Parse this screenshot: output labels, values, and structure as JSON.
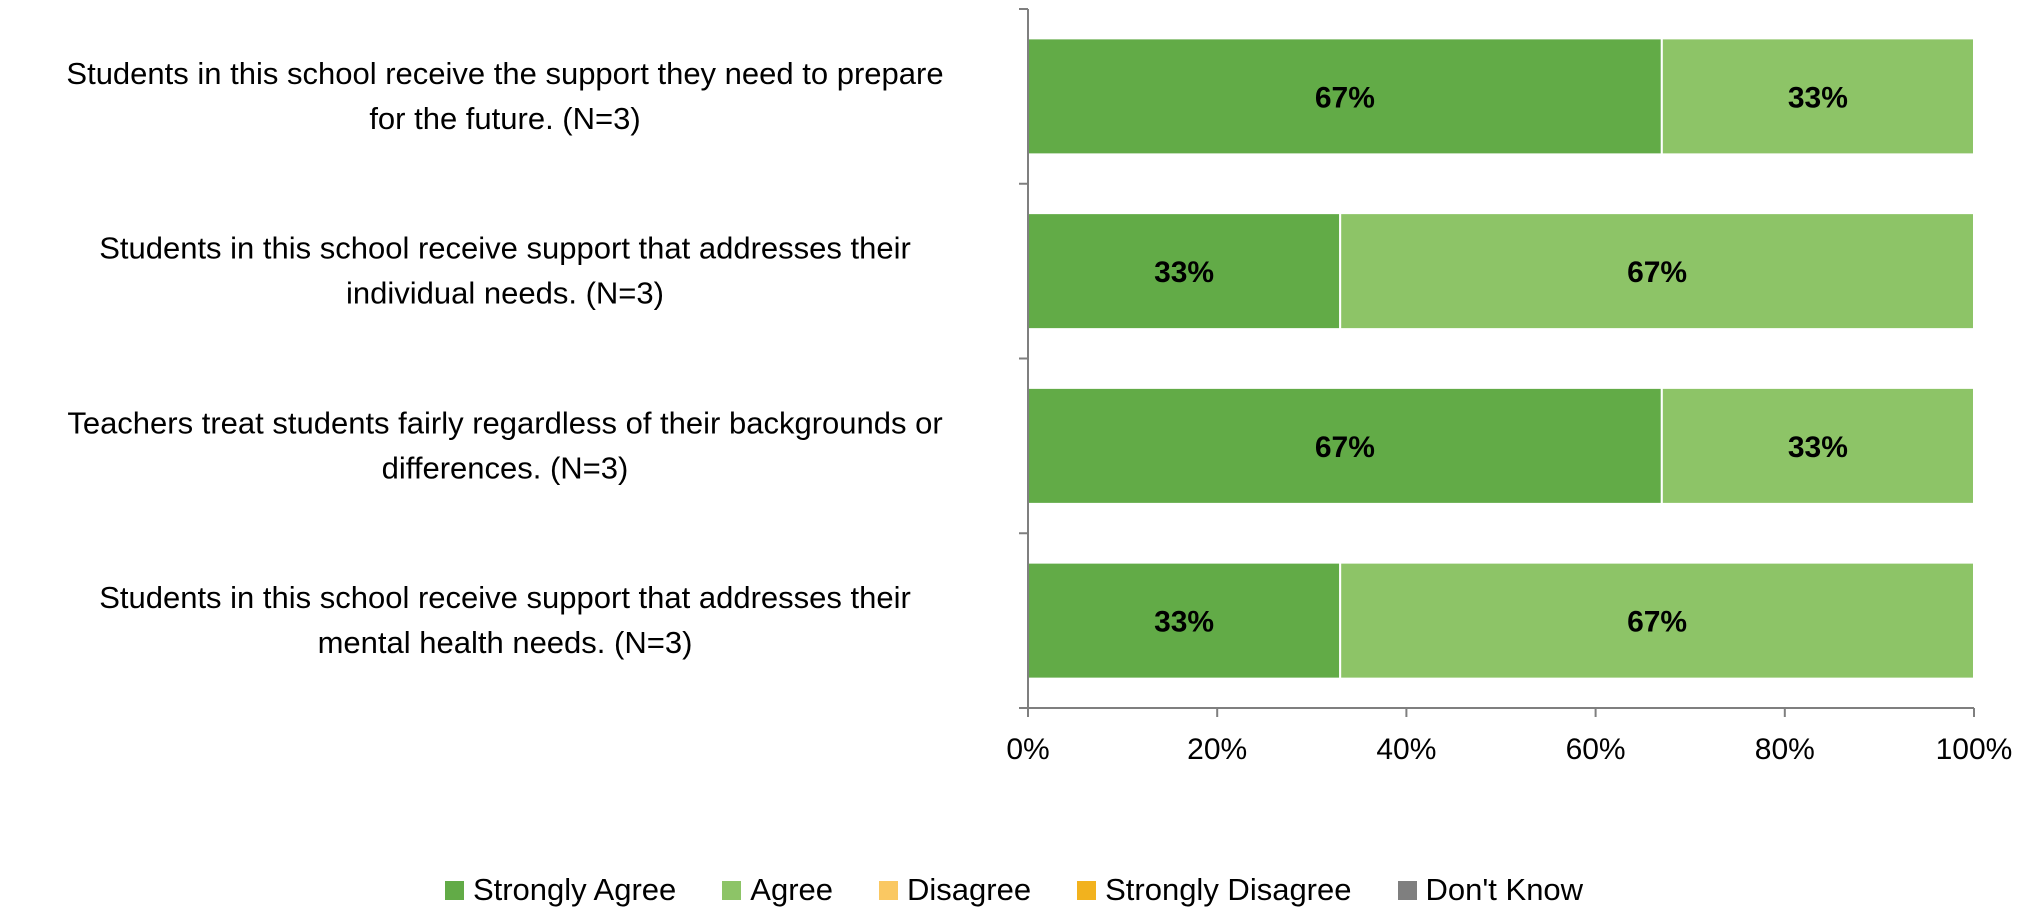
{
  "chart_data": {
    "type": "bar",
    "orientation": "horizontal",
    "stacked": true,
    "categories": [
      "Students in this school receive the support they need to prepare for the future. (N=3)",
      "Students in this school receive support that addresses their individual needs. (N=3)",
      "Teachers treat students fairly regardless of their backgrounds or differences. (N=3)",
      "Students in this school receive support that addresses their mental health needs. (N=3)"
    ],
    "category_lines": [
      [
        "Students in this school receive the support they need to prepare",
        "for the future. (N=3)"
      ],
      [
        "Students in this school receive support that addresses their",
        "individual needs. (N=3)"
      ],
      [
        "Teachers treat students fairly regardless of their backgrounds or",
        "differences. (N=3)"
      ],
      [
        "Students in this school receive support that addresses their",
        "mental health needs. (N=3)"
      ]
    ],
    "series": [
      {
        "name": "Strongly Agree",
        "color": "#62AB47",
        "values": [
          67,
          33,
          67,
          33
        ],
        "labels": [
          "67%",
          "33%",
          "67%",
          "33%"
        ]
      },
      {
        "name": "Agree",
        "color": "#8DC467",
        "values": [
          33,
          67,
          33,
          67
        ],
        "labels": [
          "33%",
          "67%",
          "33%",
          "67%"
        ]
      },
      {
        "name": "Disagree",
        "color": "#FAC862",
        "values": [
          0,
          0,
          0,
          0
        ],
        "labels": [
          "",
          "",
          "",
          ""
        ]
      },
      {
        "name": "Strongly Disagree",
        "color": "#F2B21E",
        "values": [
          0,
          0,
          0,
          0
        ],
        "labels": [
          "",
          "",
          "",
          ""
        ]
      },
      {
        "name": "Don't Know",
        "color": "#7F7F7F",
        "values": [
          0,
          0,
          0,
          0
        ],
        "labels": [
          "",
          "",
          "",
          ""
        ]
      }
    ],
    "xticks": [
      0,
      20,
      40,
      60,
      80,
      100
    ],
    "xtick_labels": [
      "0%",
      "20%",
      "40%",
      "60%",
      "80%",
      "100%"
    ],
    "xlim": [
      0,
      100
    ],
    "grid": false,
    "legend_position": "bottom",
    "title": "",
    "xlabel": "",
    "ylabel": "",
    "axis_color": "#7F7F7F"
  }
}
